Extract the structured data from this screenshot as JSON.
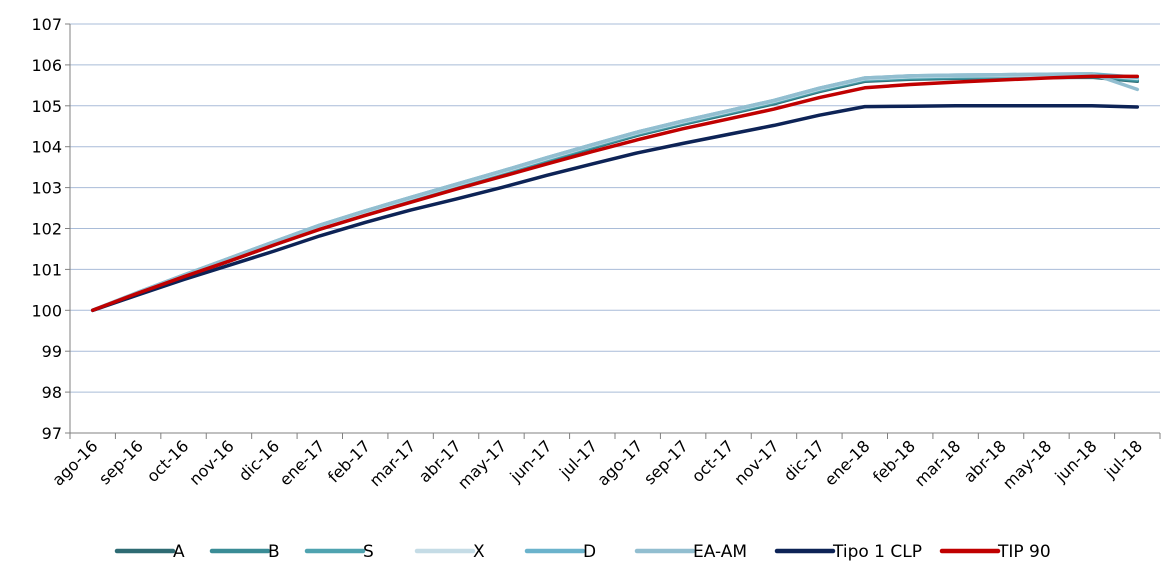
{
  "chart_data": {
    "type": "line",
    "title": "",
    "xlabel": "",
    "ylabel": "",
    "ylim": [
      97,
      107
    ],
    "yticks": [
      97,
      98,
      99,
      100,
      101,
      102,
      103,
      104,
      105,
      106,
      107
    ],
    "grid": "horizontal",
    "legend": "bottom",
    "categories": [
      "ago-16",
      "sep-16",
      "oct-16",
      "nov-16",
      "dic-16",
      "ene-17",
      "feb-17",
      "mar-17",
      "abr-17",
      "may-17",
      "jun-17",
      "jul-17",
      "ago-17",
      "sep-17",
      "oct-17",
      "nov-17",
      "dic-17",
      "ene-18",
      "feb-18",
      "mar-18",
      "abr-18",
      "may-18",
      "jun-18",
      "jul-18"
    ],
    "series": [
      {
        "name": "A",
        "color": "#2E6B73",
        "values": [
          100.0,
          100.42,
          100.82,
          101.2,
          101.6,
          102.0,
          102.35,
          102.68,
          103.0,
          103.32,
          103.65,
          103.97,
          104.28,
          104.55,
          104.8,
          105.05,
          105.35,
          105.6,
          105.65,
          105.67,
          105.68,
          105.69,
          105.7,
          105.6
        ]
      },
      {
        "name": "B",
        "color": "#3A8C96",
        "values": [
          100.0,
          100.42,
          100.83,
          101.22,
          101.62,
          102.02,
          102.37,
          102.7,
          103.02,
          103.34,
          103.67,
          103.99,
          104.3,
          104.57,
          104.82,
          105.07,
          105.37,
          105.62,
          105.67,
          105.69,
          105.7,
          105.71,
          105.72,
          105.62
        ]
      },
      {
        "name": "S",
        "color": "#4FA3B0",
        "values": [
          100.0,
          100.43,
          100.84,
          101.24,
          101.64,
          102.04,
          102.39,
          102.72,
          103.04,
          103.36,
          103.69,
          104.01,
          104.32,
          104.59,
          104.84,
          105.09,
          105.39,
          105.64,
          105.69,
          105.71,
          105.72,
          105.73,
          105.74,
          105.65
        ]
      },
      {
        "name": "X",
        "color": "#C5DCE6",
        "values": [
          100.0,
          100.43,
          100.85,
          101.25,
          101.66,
          102.06,
          102.41,
          102.74,
          103.06,
          103.38,
          103.71,
          104.03,
          104.34,
          104.61,
          104.86,
          105.11,
          105.41,
          105.66,
          105.71,
          105.73,
          105.74,
          105.75,
          105.76,
          105.67
        ]
      },
      {
        "name": "D",
        "color": "#6BB3CC",
        "values": [
          100.0,
          100.44,
          100.86,
          101.27,
          101.68,
          102.08,
          102.43,
          102.76,
          103.08,
          103.4,
          103.73,
          104.05,
          104.36,
          104.63,
          104.88,
          105.13,
          105.43,
          105.68,
          105.73,
          105.75,
          105.76,
          105.77,
          105.78,
          105.7
        ]
      },
      {
        "name": "EA-AM",
        "color": "#92BED0",
        "values": [
          100.0,
          100.44,
          100.86,
          101.27,
          101.68,
          102.08,
          102.43,
          102.76,
          103.08,
          103.4,
          103.73,
          104.05,
          104.36,
          104.63,
          104.88,
          105.13,
          105.43,
          105.68,
          105.73,
          105.75,
          105.76,
          105.77,
          105.78,
          105.4
        ]
      },
      {
        "name": "Tipo 1 CLP",
        "color": "#0D2356",
        "values": [
          100.0,
          100.38,
          100.75,
          101.1,
          101.45,
          101.82,
          102.15,
          102.45,
          102.72,
          103.0,
          103.3,
          103.58,
          103.85,
          104.08,
          104.3,
          104.52,
          104.77,
          104.98,
          104.99,
          105.0,
          105.0,
          105.0,
          105.0,
          104.97
        ]
      },
      {
        "name": "TIP 90",
        "color": "#C00000",
        "values": [
          100.0,
          100.42,
          100.82,
          101.2,
          101.6,
          101.98,
          102.32,
          102.64,
          102.96,
          103.27,
          103.58,
          103.88,
          104.17,
          104.44,
          104.68,
          104.92,
          105.2,
          105.44,
          105.52,
          105.58,
          105.63,
          105.68,
          105.72,
          105.72
        ]
      }
    ]
  }
}
